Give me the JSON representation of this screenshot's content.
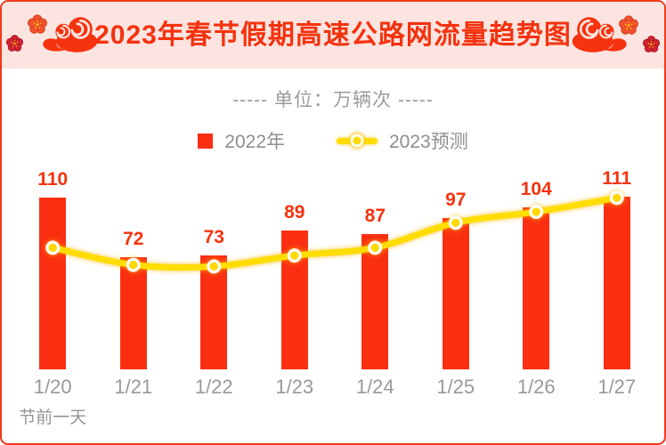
{
  "poster": {
    "title": "2023年春节假期高速公路网流量趋势图",
    "unit_line": "----- 单位：万辆次 -----",
    "footnote": "节前一天"
  },
  "legend": {
    "bar_label": "2022年",
    "line_label": "2023预测"
  },
  "colors": {
    "border_red": "#EE3A1C",
    "header_pink": "#FCE4E0",
    "title_red": "#F4320E",
    "bar_red": "#FA2F12",
    "label_red": "#F4330D",
    "line_yellow": "#FFDD00",
    "dot_yellow": "#FFD800",
    "text_gray": "#999999"
  },
  "icons": {
    "header_left": [
      "plum-blossom-icon",
      "plum-blossom-icon",
      "auspicious-cloud-icon"
    ],
    "header_right": [
      "auspicious-cloud-icon",
      "plum-blossom-icon",
      "plum-blossom-icon"
    ]
  },
  "chart_data": {
    "type": "bar+line",
    "title": "2023年春节假期高速公路网流量趋势图",
    "unit": "万辆次",
    "categories": [
      "1/20",
      "1/21",
      "1/22",
      "1/23",
      "1/24",
      "1/25",
      "1/26",
      "1/27"
    ],
    "series": [
      {
        "name": "2022年",
        "type": "bar",
        "color": "#FA2F12",
        "values": [
          110,
          72,
          73,
          89,
          87,
          97,
          104,
          111
        ],
        "data_labels": true
      },
      {
        "name": "2023预测",
        "type": "line",
        "color": "#FFDD00",
        "values": [
          78,
          67,
          66,
          73,
          78,
          94,
          101,
          110
        ],
        "estimated": true,
        "data_labels": false
      }
    ],
    "ylim": [
      0,
      133
    ],
    "grid": false,
    "legend_position": "top",
    "x_note": {
      "category": "1/20",
      "text": "节前一天"
    }
  }
}
